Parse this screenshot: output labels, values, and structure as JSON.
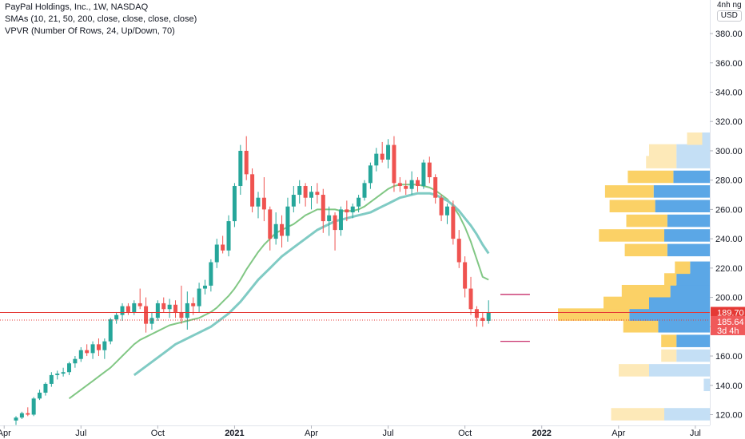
{
  "legend": {
    "line1": "PayPal Holdings, Inc., 1W, NASDAQ",
    "line2": "SMAs (10, 21, 50, 200, close, close, close, close)",
    "line3": "VPVR (Number Of Rows, 24, Up/Down, 70)"
  },
  "unit": {
    "multiplier": "4nh ng",
    "currency": "USD"
  },
  "colors": {
    "up": "#26a69a",
    "down": "#ef5350",
    "sma10": "#81c784",
    "sma21": "#80cbc4",
    "vp_up": "#5ba7e6",
    "vp_down": "#fbd166",
    "vp_up_light": "#c4dff5",
    "vp_down_light": "#fde9b8",
    "price_line": "#e53935"
  },
  "price_labels": {
    "last": "189.70",
    "current": "185.64",
    "countdown": "3d 4h"
  },
  "chart_data": {
    "type": "candlestick",
    "title": "PayPal Holdings, Inc., 1W, NASDAQ",
    "ylim": [
      117,
      392
    ],
    "y_ticks": [
      120,
      140,
      160,
      180,
      200,
      220,
      240,
      260,
      280,
      300,
      320,
      340,
      360,
      380
    ],
    "y_tick_labels": [
      "120.00",
      "140.00",
      "160.00",
      "180.00",
      "200.00",
      "220.00",
      "240.00",
      "260.00",
      "280.00",
      "300.00",
      "320.00",
      "340.00",
      "360.00",
      "380.00"
    ],
    "x_ticks": [
      {
        "label": "Apr",
        "idx": -2,
        "bold": false
      },
      {
        "label": "Jul",
        "idx": 11,
        "bold": false
      },
      {
        "label": "Oct",
        "idx": 24,
        "bold": false
      },
      {
        "label": "2021",
        "idx": 37,
        "bold": true
      },
      {
        "label": "Apr",
        "idx": 50,
        "bold": false
      },
      {
        "label": "Jul",
        "idx": 63,
        "bold": false
      },
      {
        "label": "Oct",
        "idx": 76,
        "bold": false
      },
      {
        "label": "2022",
        "idx": 89,
        "bold": true
      },
      {
        "label": "Apr",
        "idx": 102,
        "bold": false
      },
      {
        "label": "Jul",
        "idx": 115,
        "bold": false
      }
    ],
    "candles": [
      [
        116,
        119,
        113,
        118
      ],
      [
        118,
        122,
        117,
        121
      ],
      [
        121,
        125,
        119,
        120
      ],
      [
        120,
        132,
        119,
        131
      ],
      [
        131,
        137,
        130,
        135
      ],
      [
        135,
        142,
        133,
        141
      ],
      [
        141,
        149,
        139,
        147
      ],
      [
        147,
        150,
        144,
        148
      ],
      [
        148,
        152,
        146,
        149
      ],
      [
        149,
        156,
        147,
        155
      ],
      [
        155,
        160,
        152,
        158
      ],
      [
        158,
        166,
        156,
        164
      ],
      [
        164,
        168,
        160,
        162
      ],
      [
        162,
        170,
        158,
        168
      ],
      [
        168,
        172,
        160,
        164
      ],
      [
        164,
        172,
        158,
        170
      ],
      [
        170,
        186,
        168,
        185
      ],
      [
        185,
        190,
        182,
        188
      ],
      [
        188,
        196,
        184,
        194
      ],
      [
        194,
        196,
        188,
        190
      ],
      [
        190,
        198,
        188,
        196
      ],
      [
        196,
        206,
        192,
        194
      ],
      [
        194,
        200,
        176,
        182
      ],
      [
        182,
        190,
        178,
        186
      ],
      [
        186,
        198,
        184,
        196
      ],
      [
        196,
        200,
        190,
        192
      ],
      [
        192,
        199,
        186,
        195
      ],
      [
        195,
        198,
        186,
        190
      ],
      [
        190,
        208,
        182,
        186
      ],
      [
        186,
        204,
        178,
        196
      ],
      [
        196,
        200,
        188,
        194
      ],
      [
        194,
        210,
        190,
        206
      ],
      [
        206,
        212,
        202,
        208
      ],
      [
        208,
        226,
        204,
        224
      ],
      [
        224,
        240,
        220,
        236
      ],
      [
        236,
        242,
        230,
        232
      ],
      [
        232,
        256,
        228,
        252
      ],
      [
        252,
        278,
        248,
        276
      ],
      [
        276,
        304,
        270,
        300
      ],
      [
        300,
        310,
        280,
        284
      ],
      [
        284,
        288,
        258,
        262
      ],
      [
        262,
        272,
        254,
        268
      ],
      [
        268,
        282,
        252,
        260
      ],
      [
        260,
        262,
        232,
        240
      ],
      [
        240,
        258,
        236,
        250
      ],
      [
        250,
        256,
        234,
        242
      ],
      [
        242,
        268,
        238,
        262
      ],
      [
        262,
        276,
        258,
        270
      ],
      [
        270,
        280,
        264,
        276
      ],
      [
        276,
        278,
        262,
        268
      ],
      [
        268,
        276,
        260,
        272
      ],
      [
        272,
        278,
        264,
        270
      ],
      [
        270,
        274,
        244,
        252
      ],
      [
        252,
        262,
        242,
        256
      ],
      [
        256,
        258,
        232,
        246
      ],
      [
        246,
        262,
        242,
        260
      ],
      [
        260,
        266,
        252,
        258
      ],
      [
        258,
        264,
        254,
        262
      ],
      [
        262,
        270,
        258,
        268
      ],
      [
        268,
        280,
        266,
        278
      ],
      [
        278,
        292,
        274,
        290
      ],
      [
        290,
        302,
        286,
        298
      ],
      [
        298,
        306,
        292,
        294
      ],
      [
        294,
        308,
        288,
        304
      ],
      [
        304,
        310,
        272,
        278
      ],
      [
        278,
        282,
        272,
        276
      ],
      [
        276,
        280,
        270,
        274
      ],
      [
        274,
        286,
        270,
        280
      ],
      [
        280,
        282,
        272,
        276
      ],
      [
        276,
        294,
        274,
        292
      ],
      [
        292,
        296,
        278,
        282
      ],
      [
        282,
        284,
        264,
        268
      ],
      [
        268,
        270,
        252,
        256
      ],
      [
        256,
        264,
        250,
        262
      ],
      [
        262,
        266,
        236,
        240
      ],
      [
        240,
        246,
        220,
        224
      ],
      [
        224,
        228,
        200,
        206
      ],
      [
        206,
        214,
        188,
        192
      ],
      [
        192,
        194,
        180,
        186
      ],
      [
        186,
        190,
        180,
        184
      ],
      [
        184,
        198,
        182,
        189.7
      ]
    ],
    "series": [
      {
        "name": "SMA 10",
        "values": [
          null,
          null,
          null,
          null,
          null,
          null,
          null,
          null,
          null,
          131,
          134,
          137,
          140,
          143,
          146,
          149,
          152,
          156,
          160,
          164,
          168,
          171,
          173,
          175,
          177,
          179,
          181,
          182,
          183,
          184,
          185,
          186,
          188,
          190,
          193,
          197,
          201,
          206,
          212,
          219,
          225,
          231,
          236,
          240,
          244,
          246,
          248,
          250,
          253,
          256,
          258,
          260,
          260,
          260,
          260,
          259,
          259,
          259,
          260,
          262,
          265,
          268,
          271,
          274,
          276,
          277,
          277,
          277,
          277,
          276,
          275,
          273,
          270,
          267,
          262,
          256,
          248,
          238,
          226,
          214,
          212
        ]
      },
      {
        "name": "SMA 21",
        "values": [
          null,
          null,
          null,
          null,
          null,
          null,
          null,
          null,
          null,
          null,
          null,
          null,
          null,
          null,
          null,
          null,
          null,
          null,
          null,
          null,
          147,
          150,
          153,
          156,
          159,
          162,
          165,
          168,
          170,
          172,
          174,
          176,
          178,
          180,
          183,
          186,
          189,
          193,
          197,
          202,
          207,
          212,
          216,
          220,
          224,
          228,
          231,
          234,
          237,
          240,
          243,
          246,
          248,
          250,
          252,
          253,
          254,
          255,
          256,
          257,
          258,
          260,
          262,
          264,
          266,
          268,
          269,
          270,
          271,
          271,
          271,
          270,
          268,
          266,
          263,
          259,
          254,
          249,
          243,
          236,
          230
        ]
      }
    ],
    "volume_profile": [
      {
        "price": 120,
        "up": 0.3,
        "down": 0.35,
        "visible": false
      },
      {
        "price": 140,
        "up": 0.04,
        "down": 0.0,
        "visible": false
      },
      {
        "price": 150,
        "up": 0.4,
        "down": 0.2,
        "visible": false
      },
      {
        "price": 160,
        "up": 0.22,
        "down": 0.1,
        "visible": false
      },
      {
        "price": 170,
        "up": 0.22,
        "down": 0.1,
        "visible": true
      },
      {
        "price": 180,
        "up": 0.34,
        "down": 0.23,
        "visible": true
      },
      {
        "price": 188,
        "up": 0.53,
        "down": 0.47,
        "visible": true
      },
      {
        "price": 196,
        "up": 0.4,
        "down": 0.3,
        "visible": true
      },
      {
        "price": 204,
        "up": 0.26,
        "down": 0.32,
        "visible": true
      },
      {
        "price": 212,
        "up": 0.22,
        "down": 0.08,
        "visible": true
      },
      {
        "price": 220,
        "up": 0.13,
        "down": 0.1,
        "visible": true
      },
      {
        "price": 232,
        "up": 0.28,
        "down": 0.28,
        "visible": true
      },
      {
        "price": 242,
        "up": 0.3,
        "down": 0.43,
        "visible": true
      },
      {
        "price": 252,
        "up": 0.28,
        "down": 0.27,
        "visible": true
      },
      {
        "price": 262,
        "up": 0.36,
        "down": 0.3,
        "visible": true
      },
      {
        "price": 272,
        "up": 0.37,
        "down": 0.32,
        "visible": true
      },
      {
        "price": 282,
        "up": 0.24,
        "down": 0.3,
        "visible": true
      },
      {
        "price": 292,
        "up": 0.22,
        "down": 0.2,
        "visible": false
      },
      {
        "price": 300,
        "up": 0.22,
        "down": 0.18,
        "visible": false
      },
      {
        "price": 308,
        "up": 0.05,
        "down": 0.1,
        "visible": false
      }
    ],
    "annotation_lines": [
      {
        "from_idx": 82,
        "to_idx": 87,
        "price": 202
      },
      {
        "from_idx": 82,
        "to_idx": 87,
        "price": 170
      }
    ]
  }
}
